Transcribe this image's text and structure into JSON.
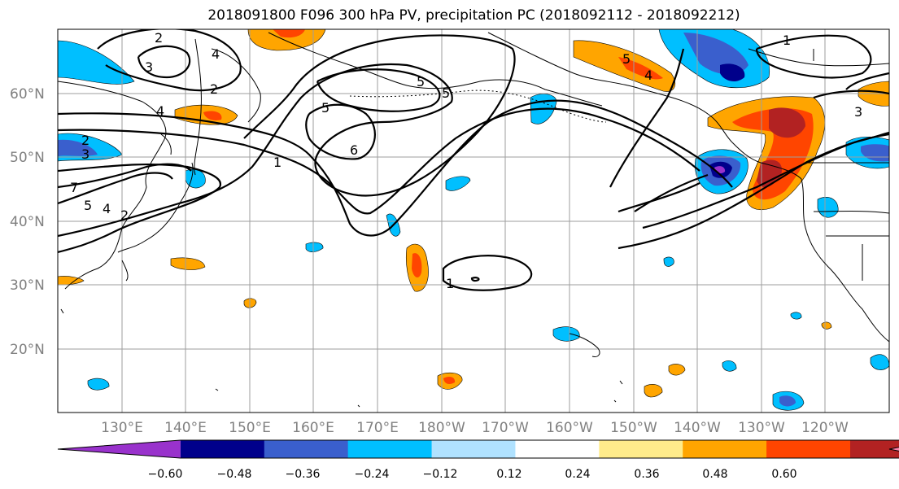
{
  "title": "2018091800 F096 300 hPa PV, precipitation PC (2018092112 - 2018092212)",
  "latitude_labels": [
    "60°N",
    "50°N",
    "40°N",
    "30°N",
    "20°N"
  ],
  "longitude_labels": [
    "130°E",
    "140°E",
    "150°E",
    "160°E",
    "170°E",
    "180°W",
    "170°W",
    "160°W",
    "150°W",
    "140°W",
    "130°W",
    "120°W"
  ],
  "colorbar": {
    "tick_labels": [
      "−0.60",
      "−0.48",
      "−0.36",
      "−0.24",
      "−0.12",
      "0.12",
      "0.24",
      "0.36",
      "0.48",
      "0.60"
    ],
    "colors": [
      "#9932cc",
      "#00008b",
      "#3a5fcd",
      "#00bfff",
      "#b0e2ff",
      "#ffffff",
      "#ffec8b",
      "#ffa500",
      "#ff4500",
      "#b22222",
      "#ff82ab"
    ]
  },
  "pv_contour_labels": [
    "2",
    "3",
    "4",
    "2",
    "4",
    "5",
    "5",
    "5",
    "6",
    "1",
    "2",
    "3",
    "7",
    "5",
    "4",
    "2",
    "5",
    "4",
    "1",
    "3",
    "1"
  ]
}
